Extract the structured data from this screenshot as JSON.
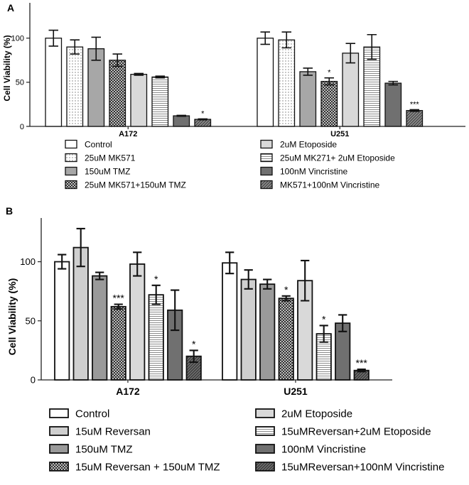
{
  "patterns": {
    "solid_white": {
      "fill": "#ffffff"
    },
    "dots": {
      "fill": "#ffffff",
      "dot": "#777777"
    },
    "solid_gray": {
      "fill": "#a7a7a7"
    },
    "checker": {
      "fill": "#303030",
      "alt": "#bdbdbd"
    },
    "light_gray": {
      "fill": "#d9d9d9"
    },
    "hstripes": {
      "fill": "#ffffff",
      "line": "#8a8a8a"
    },
    "dark_gray": {
      "fill": "#707070"
    },
    "diag_dark": {
      "fill": "#8c8c8c",
      "line": "#3a3a3a"
    },
    "mid_gray": {
      "fill": "#9a9a9a"
    },
    "light_gray2": {
      "fill": "#cfcfcf"
    },
    "diag_med": {
      "fill": "#6e6e6e",
      "line": "#2e2e2e"
    }
  },
  "chart_data": [
    {
      "panel": "A",
      "type": "bar",
      "ylabel": "Cell Viability (%)",
      "ylim": [
        0,
        140
      ],
      "yticks": [
        0,
        50,
        100
      ],
      "categories": [
        "A172",
        "U251"
      ],
      "series": [
        {
          "name": "Control",
          "pattern": "solid_white",
          "values": [
            100,
            100
          ],
          "errors": [
            9,
            7
          ],
          "sig": [
            "",
            ""
          ]
        },
        {
          "name": "25uM MK571",
          "pattern": "dots",
          "values": [
            90,
            98
          ],
          "errors": [
            8,
            9
          ],
          "sig": [
            "",
            ""
          ]
        },
        {
          "name": "150uM TMZ",
          "pattern": "solid_gray",
          "values": [
            88,
            62
          ],
          "errors": [
            13,
            4
          ],
          "sig": [
            "",
            ""
          ]
        },
        {
          "name": "25uM MK571+150uM TMZ",
          "pattern": "checker",
          "values": [
            75,
            51
          ],
          "errors": [
            7,
            4
          ],
          "sig": [
            "",
            "*"
          ]
        },
        {
          "name": "2uM Etoposide",
          "pattern": "light_gray",
          "values": [
            59,
            83
          ],
          "errors": [
            1,
            11
          ],
          "sig": [
            "",
            ""
          ]
        },
        {
          "name": "25uM MK271+ 2uM Etoposide",
          "pattern": "hstripes",
          "values": [
            56,
            90
          ],
          "errors": [
            1,
            14
          ],
          "sig": [
            "",
            ""
          ]
        },
        {
          "name": "100nM Vincristine",
          "pattern": "dark_gray",
          "values": [
            12,
            49
          ],
          "errors": [
            0.5,
            2
          ],
          "sig": [
            "",
            ""
          ]
        },
        {
          "name": "MK571+100nM Vincristine",
          "pattern": "diag_dark",
          "values": [
            8,
            18
          ],
          "errors": [
            0.5,
            1
          ],
          "sig": [
            "*",
            "***"
          ]
        }
      ]
    },
    {
      "panel": "B",
      "type": "bar",
      "ylabel": "Cell Viability (%)",
      "ylim": [
        0,
        137
      ],
      "yticks": [
        0,
        50,
        100
      ],
      "categories": [
        "A172",
        "U251"
      ],
      "series": [
        {
          "name": "Control",
          "pattern": "solid_white",
          "values": [
            100,
            99
          ],
          "errors": [
            6,
            9
          ],
          "sig": [
            "",
            ""
          ]
        },
        {
          "name": "15uM Reversan",
          "pattern": "light_gray2",
          "values": [
            112,
            85
          ],
          "errors": [
            16,
            8
          ],
          "sig": [
            "",
            ""
          ]
        },
        {
          "name": "150uM TMZ",
          "pattern": "mid_gray",
          "values": [
            88,
            81
          ],
          "errors": [
            3,
            4
          ],
          "sig": [
            "",
            ""
          ]
        },
        {
          "name": "15uM Reversan + 150uM TMZ",
          "pattern": "checker",
          "values": [
            62,
            69
          ],
          "errors": [
            2,
            2
          ],
          "sig": [
            "***",
            "*"
          ]
        },
        {
          "name": "2uM Etoposide",
          "pattern": "light_gray",
          "values": [
            98,
            84
          ],
          "errors": [
            10,
            17
          ],
          "sig": [
            "",
            ""
          ]
        },
        {
          "name": "15uMReversan+2uM Etoposide",
          "pattern": "hstripes",
          "values": [
            72,
            39
          ],
          "errors": [
            8,
            7
          ],
          "sig": [
            "*",
            "*"
          ]
        },
        {
          "name": "100nM Vincristine",
          "pattern": "dark_gray",
          "values": [
            59,
            48
          ],
          "errors": [
            17,
            7
          ],
          "sig": [
            "",
            ""
          ]
        },
        {
          "name": "15uMReversan+100nM Vincristine",
          "pattern": "diag_med",
          "values": [
            20,
            8
          ],
          "errors": [
            5,
            1
          ],
          "sig": [
            "*",
            "***"
          ]
        }
      ]
    }
  ]
}
